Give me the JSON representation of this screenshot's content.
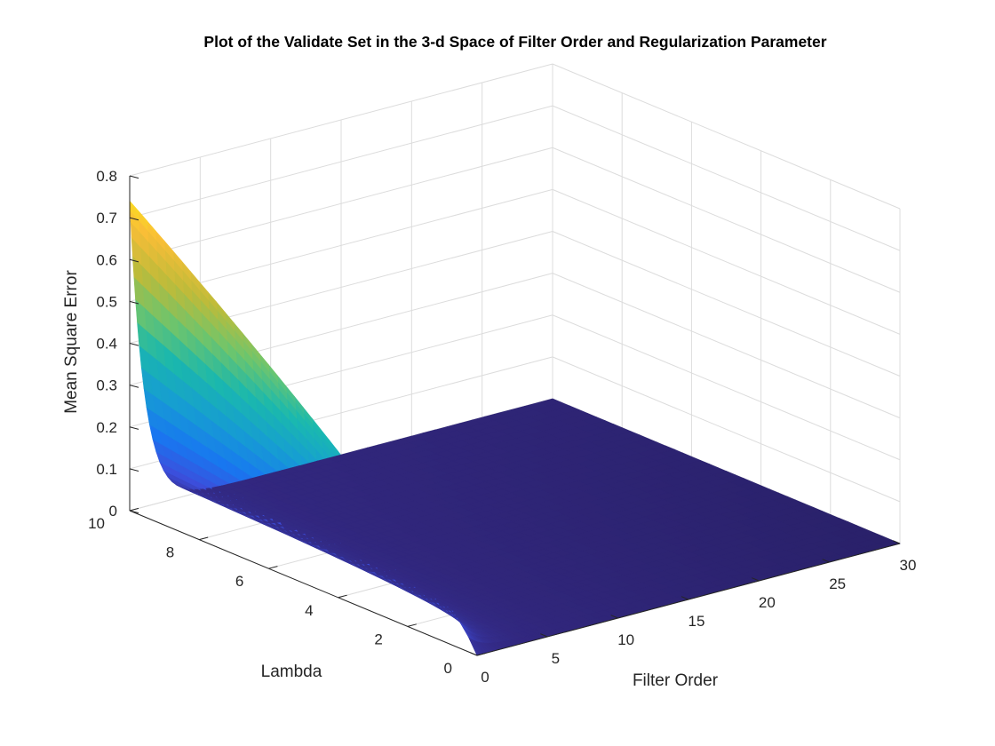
{
  "chart_data": {
    "type": "surface",
    "title": "Plot of the Validate Set in the 3-d Space of Filter Order and Regularization Parameter",
    "xlabel": "Filter Order",
    "ylabel": "Lambda",
    "zlabel": "Mean Square Error",
    "xlim": [
      0,
      30
    ],
    "ylim": [
      0,
      10
    ],
    "zlim": [
      0,
      0.8
    ],
    "xticks": [
      "0",
      "5",
      "10",
      "15",
      "20",
      "25",
      "30"
    ],
    "yticks": [
      "0",
      "2",
      "4",
      "6",
      "8",
      "10"
    ],
    "zticks": [
      "0",
      "0.1",
      "0.2",
      "0.3",
      "0.4",
      "0.5",
      "0.6",
      "0.7",
      "0.8"
    ],
    "grid": true,
    "colormap": "parula",
    "surface_corners": [
      {
        "x": 0,
        "y": 0,
        "z": 0.0
      },
      {
        "x": 0,
        "y": 10,
        "z": 0.74
      },
      {
        "x": 30,
        "y": 10,
        "z": 0.005
      },
      {
        "x": 30,
        "y": 0,
        "z": 0.0
      }
    ],
    "surface_notes": "MSE is high only at filter order 0, rising with lambda from ~0 to ~0.74; falls steeply to near zero for filter order >= 2 across all lambda."
  }
}
